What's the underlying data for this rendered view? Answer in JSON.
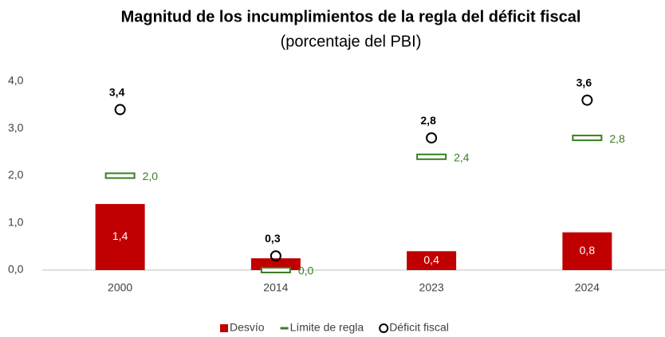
{
  "chart_data": {
    "type": "bar",
    "title": "Magnitud de los incumplimientos de la regla del déficit fiscal",
    "subtitle": "(porcentaje del PBI)",
    "categories": [
      "2000",
      "2014",
      "2023",
      "2024"
    ],
    "series": [
      {
        "name": "Desvío",
        "marker": "bar",
        "color": "#c00000",
        "values": [
          1.4,
          0.25,
          0.4,
          0.8
        ],
        "value_labels": [
          "1,4",
          null,
          "0,4",
          "0,8"
        ]
      },
      {
        "name": "Límite de regla",
        "marker": "dash",
        "color": "#3a7d22",
        "values": [
          2.0,
          0.0,
          2.4,
          2.8
        ],
        "value_labels": [
          "2,0",
          "0,0",
          "2,4",
          "2,8"
        ]
      },
      {
        "name": "Déficit fiscal",
        "marker": "circle",
        "color": "#000000",
        "values": [
          3.4,
          0.3,
          2.8,
          3.6
        ],
        "value_labels": [
          "3,4",
          "0,3",
          "2,8",
          "3,6"
        ]
      }
    ],
    "ylim": [
      0,
      4
    ],
    "yticks": [
      {
        "value": 0,
        "label": "0,0"
      },
      {
        "value": 1,
        "label": "1,0"
      },
      {
        "value": 2,
        "label": "2,0"
      },
      {
        "value": 3,
        "label": "3,0"
      },
      {
        "value": 4,
        "label": "4,0"
      }
    ],
    "grid": false,
    "legend": "bottom"
  }
}
